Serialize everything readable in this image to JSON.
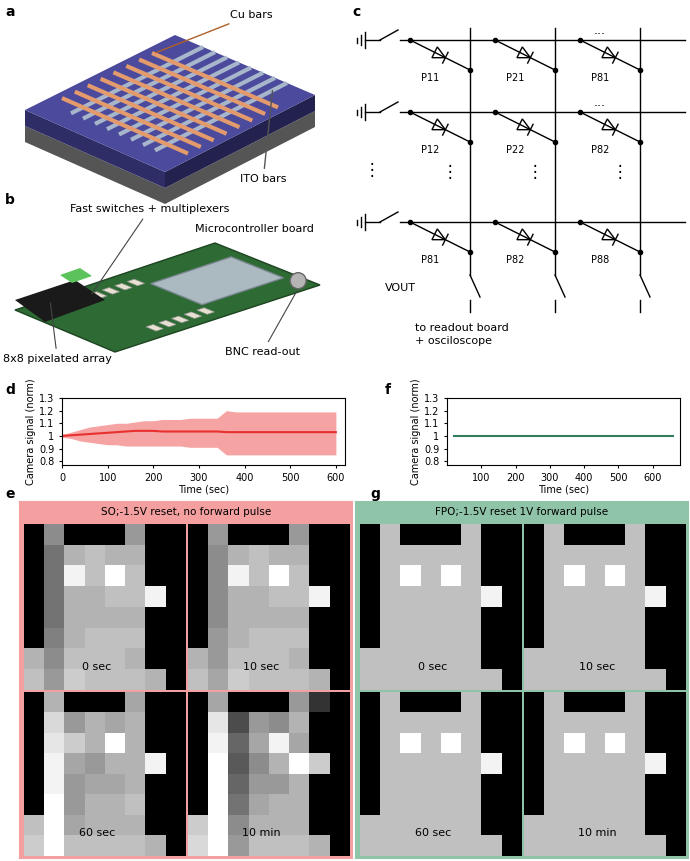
{
  "panel_a": {
    "label": "a",
    "cu_label": "Cu bars",
    "ito_label": "ITO bars"
  },
  "panel_b": {
    "label": "b",
    "switch_label": "Fast switches + multiplexers",
    "board_label": "Microcontroller board",
    "array_label": "8x8 pixelated array",
    "bnc_label": "BNC read-out"
  },
  "panel_c": {
    "label": "c",
    "diodes": [
      [
        "P11",
        "P21",
        "P81"
      ],
      [
        "P12",
        "P22",
        "P82"
      ],
      [
        "P81",
        "P82",
        "P88"
      ]
    ],
    "row_ellipsis": "...",
    "column_ellipsis": "⋮",
    "output_label": "VOUT",
    "note": [
      "to readout board",
      "+ osciloscope"
    ]
  },
  "chart_data": [
    {
      "type": "line",
      "panel_label": "d",
      "xlabel": "Time (sec)",
      "ylabel": "Camera signal (norm)",
      "x": [
        0,
        20,
        40,
        60,
        80,
        100,
        120,
        140,
        160,
        180,
        200,
        220,
        240,
        260,
        280,
        300,
        320,
        340,
        360,
        380,
        400,
        420,
        440,
        460,
        480,
        500,
        520,
        540,
        560,
        580,
        600
      ],
      "series": [
        {
          "type": "band",
          "color": "#f5a3a3",
          "lower": [
            0.99,
            0.98,
            0.96,
            0.95,
            0.94,
            0.93,
            0.93,
            0.92,
            0.92,
            0.92,
            0.92,
            0.92,
            0.92,
            0.92,
            0.91,
            0.91,
            0.91,
            0.91,
            0.85,
            0.85,
            0.85,
            0.85,
            0.85,
            0.85,
            0.85,
            0.85,
            0.85,
            0.85,
            0.85,
            0.85,
            0.85
          ],
          "upper": [
            1.01,
            1.03,
            1.05,
            1.07,
            1.08,
            1.09,
            1.1,
            1.1,
            1.11,
            1.12,
            1.12,
            1.13,
            1.13,
            1.13,
            1.14,
            1.14,
            1.14,
            1.14,
            1.2,
            1.19,
            1.19,
            1.19,
            1.19,
            1.19,
            1.19,
            1.19,
            1.19,
            1.19,
            1.19,
            1.19,
            1.19
          ]
        },
        {
          "type": "line",
          "color": "#e8312f",
          "values": [
            1,
            1.005,
            1.01,
            1.015,
            1.02,
            1.025,
            1.03,
            1.035,
            1.04,
            1.04,
            1.04,
            1.035,
            1.035,
            1.035,
            1.035,
            1.035,
            1.035,
            1.035,
            1.03,
            1.03,
            1.03,
            1.03,
            1.03,
            1.03,
            1.03,
            1.03,
            1.03,
            1.03,
            1.03,
            1.03,
            1.03
          ]
        }
      ],
      "xlim": [
        0,
        620
      ],
      "xticks": [
        0,
        100,
        200,
        300,
        400,
        500,
        600
      ],
      "ylim": [
        0.77,
        1.3
      ],
      "yticks": [
        0.8,
        0.9,
        1,
        1.1,
        1.2,
        1.3
      ]
    },
    {
      "type": "line",
      "panel_label": "f",
      "xlabel": "Time (sec)",
      "ylabel": "Camera signal (norm)",
      "x": [
        20,
        60,
        100,
        140,
        180,
        220,
        260,
        300,
        340,
        380,
        420,
        460,
        500,
        540,
        580,
        620,
        660
      ],
      "series": [
        {
          "type": "band",
          "color": "#7dbf9c",
          "lower": [
            0.99,
            0.99,
            0.99,
            0.99,
            0.99,
            0.99,
            0.99,
            0.99,
            0.99,
            0.99,
            0.99,
            0.99,
            0.99,
            0.99,
            0.99,
            0.99,
            0.99
          ],
          "upper": [
            1.01,
            1.01,
            1.01,
            1.01,
            1.01,
            1.01,
            1.01,
            1.01,
            1.01,
            1.01,
            1.01,
            1.01,
            1.01,
            1.01,
            1.01,
            1.01,
            1.01
          ]
        },
        {
          "type": "line",
          "color": "#2f7f5a",
          "values": [
            1,
            1,
            1,
            1,
            1,
            1,
            1,
            1,
            1,
            1,
            1,
            1,
            1,
            1,
            1,
            1,
            1
          ]
        }
      ],
      "xlim": [
        0,
        680
      ],
      "xticks": [
        100,
        200,
        300,
        400,
        500,
        600
      ],
      "ylim": [
        0.77,
        1.3
      ],
      "yticks": [
        0.8,
        0.9,
        1,
        1.1,
        1.2,
        1.3
      ]
    }
  ],
  "panel_e": {
    "label": "e",
    "title": "SO;-1.5V reset, no forward pulse",
    "color": "#f4a0a0",
    "cell_range": [
      0,
      1
    ],
    "frames": [
      {
        "time": "0 sec",
        "cells": [
          [
            0,
            0.55,
            0,
            0,
            0,
            0.6,
            0,
            0
          ],
          [
            0,
            0.45,
            0.7,
            0.75,
            0.7,
            0.7,
            0,
            0
          ],
          [
            0,
            0.45,
            0.95,
            0.75,
            1,
            0.75,
            0,
            0
          ],
          [
            0,
            0.45,
            0.7,
            0.7,
            0.75,
            0.75,
            0.95,
            0
          ],
          [
            0,
            0.45,
            0.7,
            0.7,
            0.7,
            0.7,
            0,
            0
          ],
          [
            0,
            0.5,
            0.7,
            0.75,
            0.75,
            0.75,
            0,
            0
          ],
          [
            0.7,
            0.55,
            0.75,
            0.75,
            0.75,
            0.7,
            0,
            0
          ],
          [
            0.75,
            0.6,
            0.8,
            0.75,
            0.75,
            0.75,
            0.7,
            0
          ]
        ]
      },
      {
        "time": "10 sec",
        "cells": [
          [
            0,
            0.6,
            0,
            0,
            0,
            0.6,
            0,
            0
          ],
          [
            0,
            0.55,
            0.7,
            0.75,
            0.7,
            0.7,
            0,
            0
          ],
          [
            0,
            0.55,
            0.95,
            0.75,
            1,
            0.75,
            0,
            0
          ],
          [
            0,
            0.55,
            0.7,
            0.7,
            0.75,
            0.75,
            0.95,
            0
          ],
          [
            0,
            0.55,
            0.7,
            0.7,
            0.7,
            0.7,
            0,
            0
          ],
          [
            0,
            0.6,
            0.7,
            0.75,
            0.75,
            0.75,
            0,
            0
          ],
          [
            0.7,
            0.6,
            0.75,
            0.75,
            0.75,
            0.7,
            0,
            0
          ],
          [
            0.75,
            0.65,
            0.8,
            0.75,
            0.75,
            0.75,
            0.7,
            0
          ]
        ]
      },
      {
        "time": "60 sec",
        "cells": [
          [
            0,
            0.7,
            0,
            0,
            0,
            0.65,
            0,
            0
          ],
          [
            0,
            0.85,
            0.6,
            0.7,
            0.65,
            0.7,
            0,
            0
          ],
          [
            0,
            0.9,
            0.8,
            0.7,
            1,
            0.7,
            0,
            0
          ],
          [
            0,
            0.95,
            0.65,
            0.6,
            0.7,
            0.7,
            0.95,
            0
          ],
          [
            0,
            0.95,
            0.6,
            0.65,
            0.65,
            0.7,
            0,
            0
          ],
          [
            0,
            1,
            0.6,
            0.7,
            0.7,
            0.75,
            0,
            0
          ],
          [
            0.75,
            1,
            0.65,
            0.7,
            0.7,
            0.7,
            0,
            0
          ],
          [
            0.8,
            1,
            0.75,
            0.75,
            0.75,
            0.75,
            0.7,
            0
          ]
        ]
      },
      {
        "time": "10 min",
        "cells": [
          [
            0,
            0.65,
            0,
            0,
            0,
            0.6,
            0.2,
            0
          ],
          [
            0,
            0.9,
            0.3,
            0.6,
            0.55,
            0.7,
            0,
            0
          ],
          [
            0,
            0.95,
            0.4,
            0.65,
            0.95,
            0.65,
            0,
            0
          ],
          [
            0,
            1,
            0.35,
            0.55,
            0.7,
            1,
            0.8,
            0
          ],
          [
            0,
            1,
            0.4,
            0.6,
            0.6,
            0.7,
            0,
            0
          ],
          [
            0,
            1,
            0.45,
            0.65,
            0.7,
            0.7,
            0,
            0
          ],
          [
            0.8,
            1,
            0.55,
            0.7,
            0.7,
            0.7,
            0,
            0
          ],
          [
            0.85,
            1,
            0.6,
            0.75,
            0.75,
            0.75,
            0.7,
            0
          ]
        ]
      }
    ]
  },
  "panel_g": {
    "label": "g",
    "title": "FPO;-1.5V reset 1V forward pulse",
    "color": "#8fc4a8",
    "cell_range": [
      0,
      1
    ],
    "frames": [
      {
        "time": "0 sec",
        "cells": [
          [
            0,
            0.75,
            0,
            0,
            0,
            0.75,
            0,
            0
          ],
          [
            0,
            0.75,
            0.75,
            0.75,
            0.75,
            0.75,
            0,
            0
          ],
          [
            0,
            0.75,
            1,
            0.75,
            1,
            0.75,
            0,
            0
          ],
          [
            0,
            0.75,
            0.75,
            0.75,
            0.75,
            0.75,
            0.95,
            0
          ],
          [
            0,
            0.75,
            0.75,
            0.75,
            0.75,
            0.75,
            0,
            0
          ],
          [
            0,
            0.75,
            0.75,
            0.75,
            0.75,
            0.75,
            0,
            0
          ],
          [
            0.75,
            0.75,
            0.75,
            0.75,
            0.75,
            0.75,
            0,
            0
          ],
          [
            0.75,
            0.75,
            0.75,
            0.75,
            0.75,
            0.75,
            0.75,
            0
          ]
        ]
      },
      {
        "time": "10 sec",
        "cells": [
          [
            0,
            0.75,
            0,
            0,
            0,
            0.75,
            0,
            0
          ],
          [
            0,
            0.75,
            0.75,
            0.75,
            0.75,
            0.75,
            0,
            0
          ],
          [
            0,
            0.75,
            1,
            0.75,
            1,
            0.75,
            0,
            0
          ],
          [
            0,
            0.75,
            0.75,
            0.75,
            0.75,
            0.75,
            0.95,
            0
          ],
          [
            0,
            0.75,
            0.75,
            0.75,
            0.75,
            0.75,
            0,
            0
          ],
          [
            0,
            0.75,
            0.75,
            0.75,
            0.75,
            0.75,
            0,
            0
          ],
          [
            0.75,
            0.75,
            0.75,
            0.75,
            0.75,
            0.75,
            0,
            0
          ],
          [
            0.75,
            0.75,
            0.75,
            0.75,
            0.75,
            0.75,
            0.75,
            0
          ]
        ]
      },
      {
        "time": "60 sec",
        "cells": [
          [
            0,
            0.75,
            0,
            0,
            0,
            0.75,
            0,
            0
          ],
          [
            0,
            0.75,
            0.75,
            0.75,
            0.75,
            0.75,
            0,
            0
          ],
          [
            0,
            0.75,
            1,
            0.75,
            1,
            0.75,
            0,
            0
          ],
          [
            0,
            0.75,
            0.75,
            0.75,
            0.75,
            0.75,
            0.95,
            0
          ],
          [
            0,
            0.75,
            0.75,
            0.75,
            0.75,
            0.75,
            0,
            0
          ],
          [
            0,
            0.75,
            0.75,
            0.75,
            0.75,
            0.75,
            0,
            0
          ],
          [
            0.75,
            0.75,
            0.75,
            0.75,
            0.75,
            0.75,
            0,
            0
          ],
          [
            0.75,
            0.75,
            0.75,
            0.75,
            0.75,
            0.75,
            0.75,
            0
          ]
        ]
      },
      {
        "time": "10 min",
        "cells": [
          [
            0,
            0.75,
            0,
            0,
            0,
            0.75,
            0,
            0
          ],
          [
            0,
            0.75,
            0.75,
            0.75,
            0.75,
            0.75,
            0,
            0
          ],
          [
            0,
            0.75,
            1,
            0.75,
            1,
            0.75,
            0,
            0
          ],
          [
            0,
            0.75,
            0.75,
            0.75,
            0.75,
            0.75,
            0.95,
            0
          ],
          [
            0,
            0.75,
            0.75,
            0.75,
            0.75,
            0.75,
            0,
            0
          ],
          [
            0,
            0.75,
            0.75,
            0.75,
            0.75,
            0.75,
            0,
            0
          ],
          [
            0.75,
            0.75,
            0.75,
            0.75,
            0.75,
            0.75,
            0,
            0
          ],
          [
            0.75,
            0.75,
            0.75,
            0.75,
            0.75,
            0.75,
            0.75,
            0
          ]
        ]
      }
    ]
  }
}
